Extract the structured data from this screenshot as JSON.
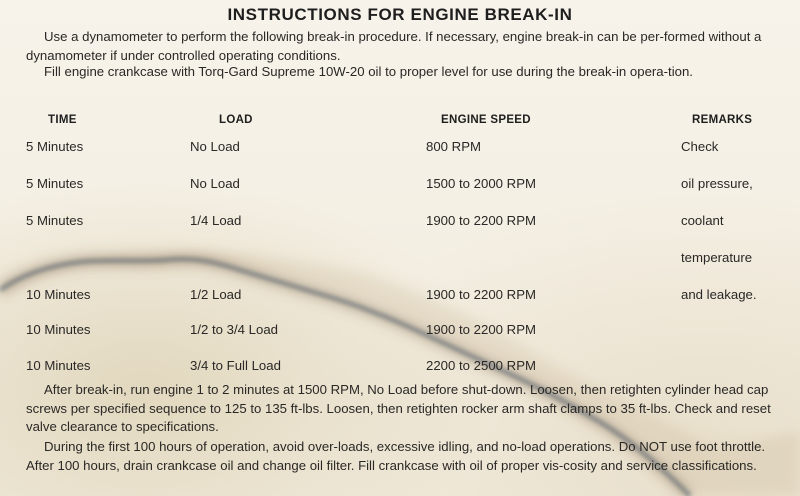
{
  "title": "INSTRUCTIONS FOR ENGINE BREAK-IN",
  "intro": [
    "Use a dynamometer to perform the following break-in procedure. If necessary, engine break-in can be per-formed without a dynamometer if under controlled operating conditions.",
    "Fill engine crankcase with Torq-Gard Supreme 10W-20 oil to proper level for use during the break-in opera-tion."
  ],
  "table": {
    "headers": {
      "time": "TIME",
      "load": "LOAD",
      "speed": "ENGINE SPEED",
      "remarks": "REMARKS"
    },
    "rows": [
      {
        "time": "5 Minutes",
        "load": "No Load",
        "speed": "800 RPM"
      },
      {
        "time": "5 Minutes",
        "load": "No Load",
        "speed": "1500 to 2000 RPM"
      },
      {
        "time": "5 Minutes",
        "load": "1/4 Load",
        "speed": "1900 to 2200 RPM"
      },
      {
        "time": "10 Minutes",
        "load": "1/2 Load",
        "speed": "1900 to 2200 RPM"
      },
      {
        "time": "10 Minutes",
        "load": "1/2 to 3/4 Load",
        "speed": "1900 to 2200 RPM"
      },
      {
        "time": "10 Minutes",
        "load": "3/4 to Full Load",
        "speed": "2200 to 2500 RPM"
      }
    ],
    "remarks": [
      "Check",
      "oil pressure,",
      "coolant",
      "temperature",
      "and leakage."
    ]
  },
  "after": [
    "After break-in, run engine 1 to 2 minutes at 1500 RPM, No Load before shut-down. Loosen, then retighten cylinder head cap screws per specified sequence to 125 to 135 ft-lbs. Loosen, then retighten rocker arm shaft clamps to 35 ft-lbs. Check and reset valve clearance to specifications.",
    "During the first 100 hours of operation, avoid over-loads, excessive idling, and no-load operations. Do NOT use foot throttle. After 100 hours, drain crankcase oil and change oil filter. Fill crankcase with oil of proper vis-cosity and service classifications."
  ]
}
